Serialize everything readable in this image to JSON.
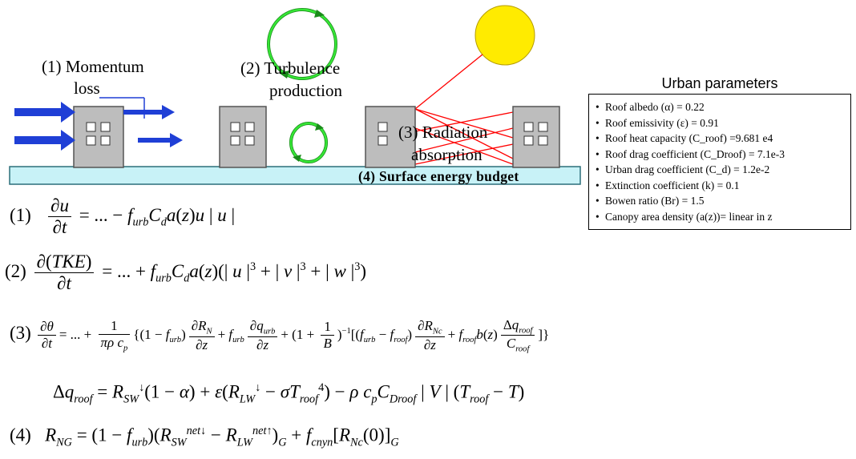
{
  "labels": {
    "momentum": [
      "(1) Momentum",
      "loss"
    ],
    "turbulence": [
      "(2) Turbulence",
      "production"
    ],
    "radiation": [
      "(3) Radiation",
      "absorption"
    ],
    "surface": "(4) Surface energy budget"
  },
  "params": {
    "title": "Urban parameters",
    "items": [
      "Roof albedo (α) = 0.22",
      "Roof emissivity (ε) = 0.91",
      "Roof heat capacity (C_roof) =9.681 e4",
      "Roof drag coefficient (C_Droof) = 7.1e-3",
      "Urban drag coefficient (C_d) = 1.2e-2",
      "Extinction coefficient (k) = 0.1",
      "Bowen ratio (Br) = 1.5",
      "Canopy area density (a(z))= linear in z"
    ]
  },
  "equations": {
    "n1": "(1)",
    "n2": "(2)",
    "n3": "(3)",
    "n4": "(4)"
  },
  "colors": {
    "sky_arrow": "#1f3fd6",
    "ground": "#c8f2f7",
    "building": "#bdbdbd",
    "circle": "#2fdc2f",
    "sun": "#ffeb00",
    "ray": "#ff0000"
  }
}
